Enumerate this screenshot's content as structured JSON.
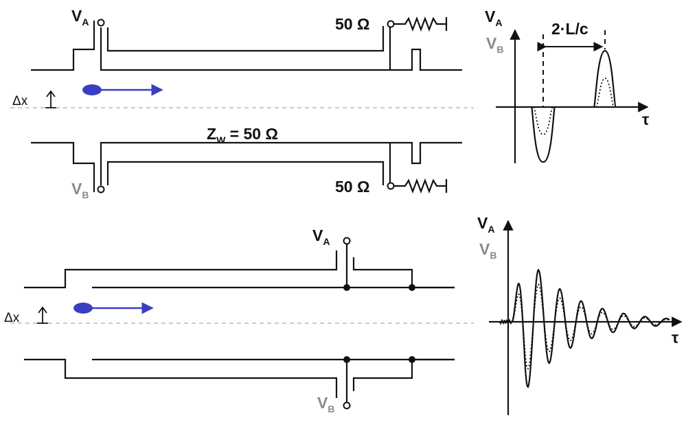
{
  "labels": {
    "va_top": "V",
    "va_top_sub": "A",
    "vb_top": "V",
    "vb_top_sub": "B",
    "res_top": "50 Ω",
    "res_bottom": "50 Ω",
    "impedance": "Z",
    "impedance_sub": "W",
    "impedance_val": " = 50 Ω",
    "dx_top": "Δx",
    "dx_bottom": "Δx",
    "va_bot": "V",
    "va_bot_sub": "A",
    "vb_bot": "V",
    "vb_bot_sub": "B"
  },
  "plots": {
    "top": {
      "ylabel_a": "V",
      "ylabel_a_sub": "A",
      "ylabel_b": "V",
      "ylabel_b_sub": "B",
      "xlabel": "τ",
      "delay_label": "2·L/c"
    },
    "bottom": {
      "ylabel_a": "V",
      "ylabel_a_sub": "A",
      "ylabel_b": "V",
      "ylabel_b_sub": "B",
      "xlabel": "τ"
    }
  },
  "colors": {
    "beam": "#3a3fc0",
    "wire": "#111111",
    "vb_label": "#8a8a8a"
  }
}
